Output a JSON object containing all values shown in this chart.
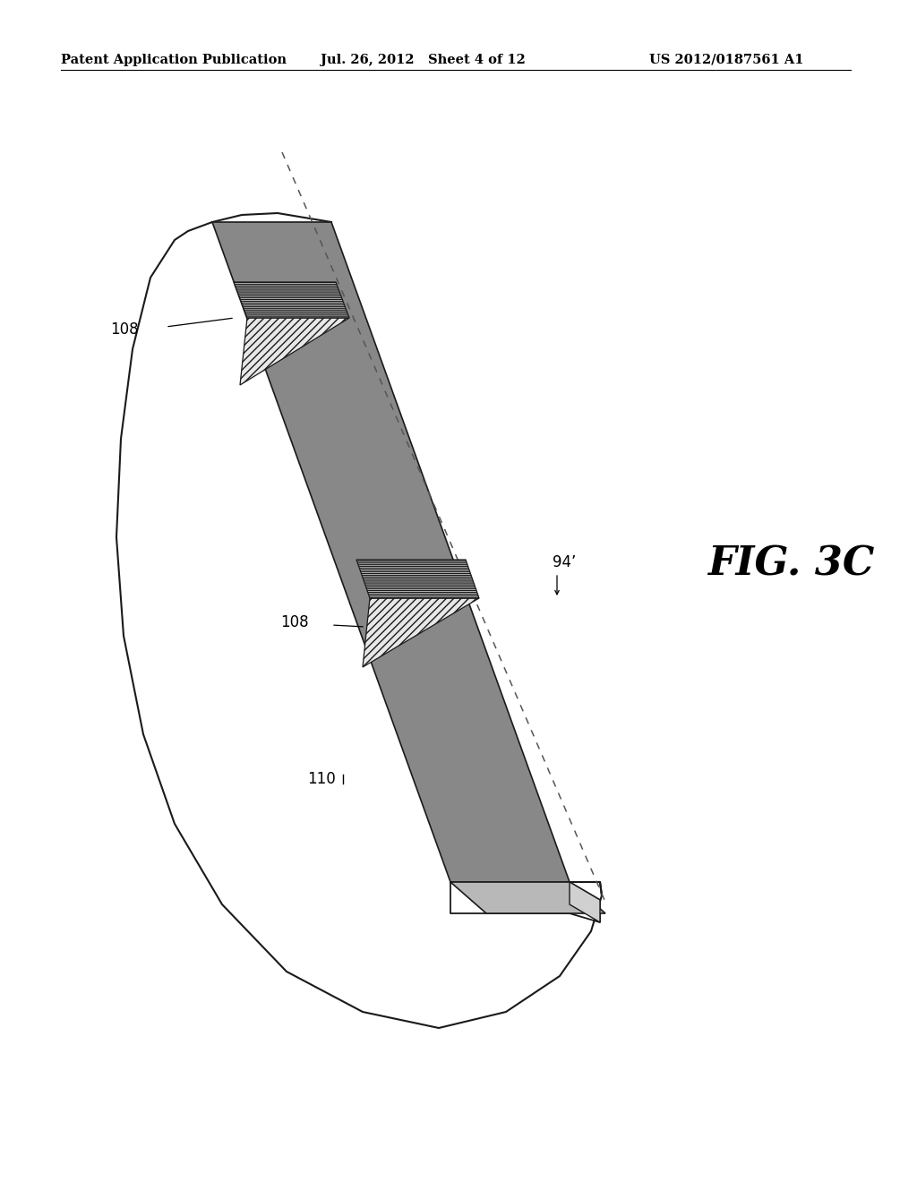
{
  "header_left": "Patent Application Publication",
  "header_mid": "Jul. 26, 2012   Sheet 4 of 12",
  "header_right": "US 2012/0187561 A1",
  "fig_label": "FIG. 3C",
  "label_108a": "108",
  "label_108b": "108",
  "label_110": "110",
  "label_94": "94’",
  "bg_color": "#ffffff",
  "strip_top_color": "#888888",
  "strip_side_color": "#b8b8b8",
  "strip_edge": "#1a1a1a",
  "sub_edge": "#1a1a1a",
  "hatch_pad_color": "#cccccc",
  "wedge_color": "#e0e0e0",
  "dashed_color": "#555555"
}
